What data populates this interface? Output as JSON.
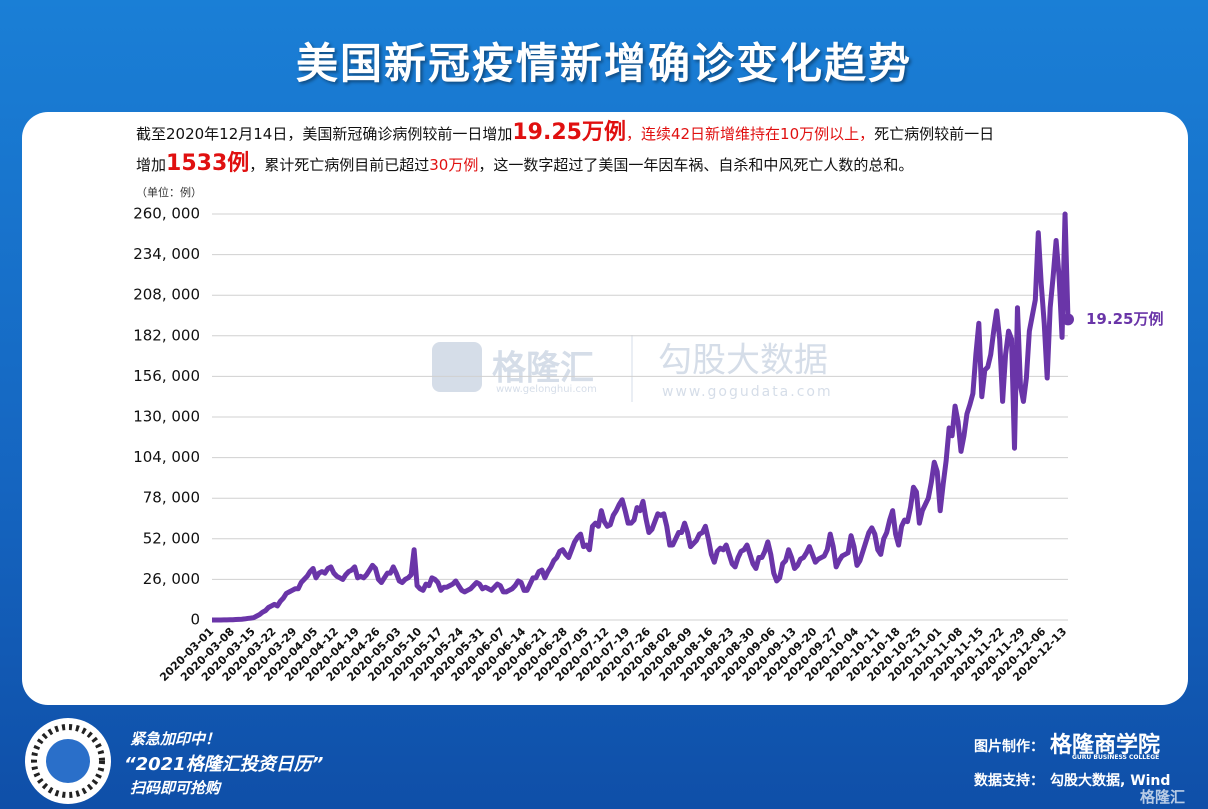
{
  "header": {
    "title": "美国新冠疫情新增确诊变化趋势"
  },
  "summary": {
    "segments": [
      "截至2020年12月14日，美国新冠确诊病例较前一日增加",
      "19.25万例",
      "，连续42日新增维持在10万例以上，",
      "死亡病例较前一日",
      "增加",
      "1533例",
      "，累计死亡病例目前已超过",
      "30万例",
      "，这一数字超过了美国一年因车祸、自杀和中风死亡人数的总和。"
    ]
  },
  "watermark": {
    "brand1": "格隆汇",
    "url1": "www.gelonghui.com",
    "brand2": "勾股大数据",
    "url2": "www.gogudata.com"
  },
  "chart_data": {
    "type": "line",
    "unit_label": "（单位：例）",
    "line_color": "#6a35a8",
    "end_label": "19.25万例",
    "ylim": [
      0,
      260000
    ],
    "yticks": [
      0,
      {
        "value": 26000,
        "label": "26, 000"
      },
      {
        "value": 52000,
        "label": "52, 000"
      },
      {
        "value": 78000,
        "label": "78, 000"
      },
      {
        "value": 104000,
        "label": "104, 000"
      },
      {
        "value": 130000,
        "label": "130, 000"
      },
      {
        "value": 156000,
        "label": "156, 000"
      },
      {
        "value": 182000,
        "label": "182, 000"
      },
      {
        "value": 208000,
        "label": "208, 000"
      },
      {
        "value": 234000,
        "label": "234, 000"
      },
      {
        "value": 260000,
        "label": "260, 000"
      }
    ],
    "grid": true,
    "categories": [
      "2020-03-01",
      null,
      null,
      null,
      null,
      null,
      null,
      "2020-03-08",
      null,
      null,
      null,
      null,
      null,
      null,
      "2020-03-15",
      null,
      null,
      null,
      null,
      null,
      null,
      "2020-03-22",
      null,
      null,
      null,
      null,
      null,
      null,
      "2020-03-29",
      null,
      null,
      null,
      null,
      null,
      null,
      "2020-04-05",
      null,
      null,
      null,
      null,
      null,
      null,
      "2020-04-12",
      null,
      null,
      null,
      null,
      null,
      null,
      "2020-04-19",
      null,
      null,
      null,
      null,
      null,
      null,
      "2020-04-26",
      null,
      null,
      null,
      null,
      null,
      null,
      "2020-05-03",
      null,
      null,
      null,
      null,
      null,
      null,
      "2020-05-10",
      null,
      null,
      null,
      null,
      null,
      null,
      "2020-05-17",
      null,
      null,
      null,
      null,
      null,
      null,
      "2020-05-24",
      null,
      null,
      null,
      null,
      null,
      null,
      "2020-05-31",
      null,
      null,
      null,
      null,
      null,
      null,
      "2020-06-07",
      null,
      null,
      null,
      null,
      null,
      null,
      "2020-06-14",
      null,
      null,
      null,
      null,
      null,
      null,
      "2020-06-21",
      null,
      null,
      null,
      null,
      null,
      null,
      "2020-06-28",
      null,
      null,
      null,
      null,
      null,
      null,
      "2020-07-05",
      null,
      null,
      null,
      null,
      null,
      null,
      "2020-07-12",
      null,
      null,
      null,
      null,
      null,
      null,
      "2020-07-19",
      null,
      null,
      null,
      null,
      null,
      null,
      "2020-07-26",
      null,
      null,
      null,
      null,
      null,
      null,
      "2020-08-02",
      null,
      null,
      null,
      null,
      null,
      null,
      "2020-08-09",
      null,
      null,
      null,
      null,
      null,
      null,
      "2020-08-16",
      null,
      null,
      null,
      null,
      null,
      null,
      "2020-08-23",
      null,
      null,
      null,
      null,
      null,
      null,
      "2020-08-30",
      null,
      null,
      null,
      null,
      null,
      null,
      "2020-09-06",
      null,
      null,
      null,
      null,
      null,
      null,
      "2020-09-13",
      null,
      null,
      null,
      null,
      null,
      null,
      "2020-09-20",
      null,
      null,
      null,
      null,
      null,
      null,
      "2020-09-27",
      null,
      null,
      null,
      null,
      null,
      null,
      "2020-10-04",
      null,
      null,
      null,
      null,
      null,
      null,
      "2020-10-11",
      null,
      null,
      null,
      null,
      null,
      null,
      "2020-10-18",
      null,
      null,
      null,
      null,
      null,
      null,
      "2020-10-25",
      null,
      null,
      null,
      null,
      null,
      null,
      "2020-11-01",
      null,
      null,
      null,
      null,
      null,
      null,
      "2020-11-08",
      null,
      null,
      null,
      null,
      null,
      null,
      "2020-11-15",
      null,
      null,
      null,
      null,
      null,
      null,
      "2020-11-22",
      null,
      null,
      null,
      null,
      null,
      null,
      "2020-11-29",
      null,
      null,
      null,
      null,
      null,
      null,
      "2020-12-06",
      null,
      null,
      null,
      null,
      null,
      null,
      "2020-12-13",
      null
    ],
    "values": [
      10,
      20,
      30,
      40,
      60,
      80,
      120,
      150,
      300,
      400,
      500,
      700,
      1000,
      1200,
      1500,
      2500,
      3500,
      5000,
      6000,
      8000,
      9000,
      10000,
      9000,
      12000,
      14000,
      17000,
      18000,
      19000,
      20000,
      20000,
      24000,
      26000,
      28000,
      31000,
      33000,
      27000,
      30000,
      31000,
      30000,
      33000,
      34000,
      30000,
      28000,
      27000,
      26000,
      29000,
      31000,
      32000,
      34000,
      27000,
      28000,
      27000,
      29000,
      32000,
      35000,
      33000,
      26000,
      24000,
      27000,
      30000,
      30000,
      34000,
      30000,
      25000,
      24000,
      26000,
      27000,
      29000,
      45000,
      22000,
      20000,
      19000,
      23000,
      22000,
      27000,
      26000,
      24000,
      19000,
      21000,
      21000,
      22000,
      23000,
      25000,
      22000,
      19000,
      18000,
      19000,
      20000,
      22000,
      24000,
      23000,
      20000,
      21000,
      20000,
      19000,
      21000,
      23000,
      22000,
      18000,
      18000,
      19000,
      20000,
      22000,
      25000,
      24000,
      19000,
      19000,
      23000,
      27000,
      27000,
      31000,
      32000,
      27000,
      31000,
      34000,
      38000,
      40000,
      44000,
      45000,
      42000,
      40000,
      45000,
      50000,
      53000,
      55000,
      47000,
      48000,
      45000,
      60000,
      62000,
      60000,
      70000,
      63000,
      60000,
      61000,
      67000,
      70000,
      74000,
      77000,
      70000,
      62000,
      62000,
      64000,
      72000,
      70000,
      76000,
      65000,
      56000,
      58000,
      63000,
      68000,
      67000,
      68000,
      60000,
      48000,
      48000,
      52000,
      56000,
      56000,
      62000,
      56000,
      47000,
      49000,
      51000,
      55000,
      56000,
      60000,
      52000,
      42000,
      37000,
      44000,
      46000,
      45000,
      48000,
      42000,
      36000,
      34000,
      40000,
      44000,
      45000,
      48000,
      42000,
      36000,
      33000,
      40000,
      40000,
      44000,
      50000,
      42000,
      30000,
      25000,
      27000,
      36000,
      38000,
      45000,
      40000,
      33000,
      35000,
      39000,
      40000,
      43000,
      47000,
      42000,
      37000,
      39000,
      40000,
      41000,
      45000,
      55000,
      47000,
      34000,
      38000,
      41000,
      42000,
      43000,
      54000,
      47000,
      35000,
      38000,
      44000,
      50000,
      56000,
      59000,
      55000,
      45000,
      42000,
      52000,
      56000,
      64000,
      70000,
      55000,
      48000,
      60000,
      64000,
      63000,
      72000,
      85000,
      82000,
      62000,
      70000,
      74000,
      78000,
      88000,
      101000,
      95000,
      70000,
      87000,
      102000,
      123000,
      118000,
      137000,
      127000,
      108000,
      118000,
      132000,
      138000,
      145000,
      170000,
      190000,
      143000,
      160000,
      162000,
      170000,
      185000,
      198000,
      180000,
      140000,
      170000,
      185000,
      180000,
      110000,
      200000,
      150000,
      140000,
      155000,
      185000,
      195000,
      205000,
      248000,
      215000,
      190000,
      155000,
      200000,
      220000,
      243000,
      220000,
      181000,
      260000,
      192500
    ]
  },
  "footer": {
    "promo1": "紧急加印中！",
    "promo2": "“2021格隆汇投资日历”",
    "promo3": "扫码即可抢购",
    "made_by_label": "图片制作：",
    "made_by": "格隆商学院",
    "made_by_en": "GURU BUSINESS COLLEGE",
    "source_label": "数据支持：",
    "source": "勾股大数据, Wind",
    "corner_logo": "格隆汇"
  }
}
